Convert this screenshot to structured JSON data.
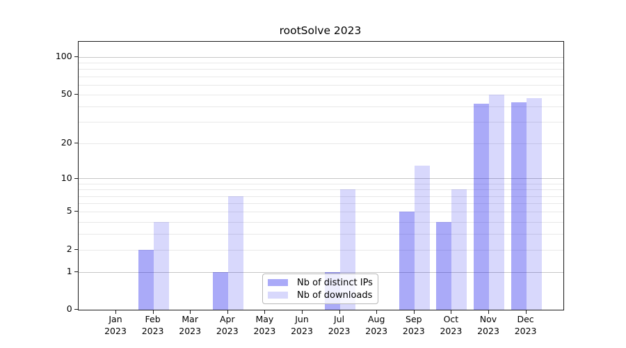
{
  "title": "rootSolve 2023",
  "chart_data": {
    "type": "bar",
    "title": "rootSolve 2023",
    "categories": [
      "Jan 2023",
      "Feb 2023",
      "Mar 2023",
      "Apr 2023",
      "May 2023",
      "Jun 2023",
      "Jul 2023",
      "Aug 2023",
      "Sep 2023",
      "Oct 2023",
      "Nov 2023",
      "Dec 2023"
    ],
    "month_labels": [
      "Jan",
      "Feb",
      "Mar",
      "Apr",
      "May",
      "Jun",
      "Jul",
      "Aug",
      "Sep",
      "Oct",
      "Nov",
      "Dec"
    ],
    "year_label": "2023",
    "series": [
      {
        "name": "Nb of distinct IPs",
        "color": "rgba(10,10,235,0.345)",
        "solid_color": "#aaaaf2",
        "values": [
          0,
          2,
          0,
          1,
          0,
          0,
          1,
          0,
          5,
          4,
          42,
          43
        ]
      },
      {
        "name": "Nb of downloads",
        "color": "rgba(10,10,235,0.16)",
        "solid_color": "#d8d8f8",
        "values": [
          0,
          4,
          0,
          7,
          0,
          0,
          8,
          0,
          13,
          8,
          50,
          47
        ]
      }
    ],
    "yscale": "log1p",
    "yticks": [
      0,
      1,
      2,
      5,
      10,
      20,
      50,
      100
    ],
    "major_grid_values": [
      1,
      10,
      100
    ],
    "minor_grid_values": [
      2,
      3,
      4,
      5,
      6,
      7,
      8,
      9,
      20,
      30,
      40,
      50,
      60,
      70,
      80,
      90
    ],
    "ylim": [
      0,
      132
    ],
    "grid": "on",
    "xlabel": "",
    "ylabel": "",
    "legend_position": "lower center"
  },
  "legend": {
    "items": [
      {
        "label": "Nb of distinct IPs"
      },
      {
        "label": "Nb of downloads"
      }
    ]
  }
}
